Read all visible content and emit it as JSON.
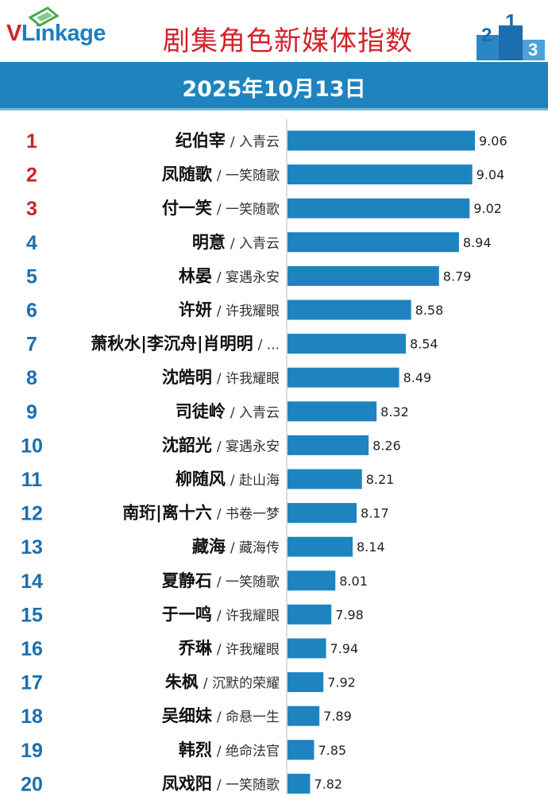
{
  "header": {
    "logo_v": "V",
    "logo_rest": "Linkage",
    "title": "剧集角色新媒体指数",
    "date": "2025年10月13日",
    "podium_digits": [
      "2",
      "1",
      "3"
    ]
  },
  "colors": {
    "bar": "#1e84bf",
    "rank_top": "#c8232b",
    "rank_other": "#1b6fae",
    "axis": "#b9b9b9"
  },
  "chart_data": {
    "type": "bar",
    "orientation": "horizontal",
    "title": "剧集角色新媒体指数",
    "subtitle": "2025年10月13日",
    "categories": [
      "纪伯宰",
      "凤随歌",
      "付一笑",
      "明意",
      "林晏",
      "许妍",
      "萧秋水|李沉舟|肖明明",
      "沈皓明",
      "司徒岭",
      "沈韶光",
      "柳随风",
      "南珩|离十六",
      "藏海",
      "夏静石",
      "于一鸣",
      "乔琳",
      "朱枫",
      "吴细妹",
      "韩烈",
      "凤戏阳"
    ],
    "ranks": [
      "1",
      "2",
      "3",
      "4",
      "5",
      "6",
      "7",
      "8",
      "9",
      "10",
      "11",
      "12",
      "13",
      "14",
      "15",
      "16",
      "17",
      "18",
      "19",
      "20"
    ],
    "dramas": [
      "/ 入青云",
      "/ 一笑随歌",
      "/ 一笑随歌",
      "/ 入青云",
      "/ 宴遇永安",
      "/ 许我耀眼",
      "/ ...",
      "/ 许我耀眼",
      "/ 入青云",
      "/ 宴遇永安",
      "/ 赴山海",
      "/ 书卷一梦",
      "/ 藏海传",
      "/ 一笑随歌",
      "/ 许我耀眼",
      "/ 许我耀眼",
      "/ 沉默的荣耀",
      "/ 命悬一生",
      "/ 绝命法官",
      "/ 一笑随歌"
    ],
    "values": [
      9.06,
      9.04,
      9.02,
      8.94,
      8.79,
      8.58,
      8.54,
      8.49,
      8.32,
      8.26,
      8.21,
      8.17,
      8.14,
      8.01,
      7.98,
      7.94,
      7.92,
      7.89,
      7.85,
      7.82
    ],
    "value_labels": [
      "9.06",
      "9.04",
      "9.02",
      "8.94",
      "8.79",
      "8.58",
      "8.54",
      "8.49",
      "8.32",
      "8.26",
      "8.21",
      "8.17",
      "8.14",
      "8.01",
      "7.98",
      "7.94",
      "7.92",
      "7.89",
      "7.85",
      "7.82"
    ],
    "xlim": [
      7.65,
      9.06
    ]
  }
}
